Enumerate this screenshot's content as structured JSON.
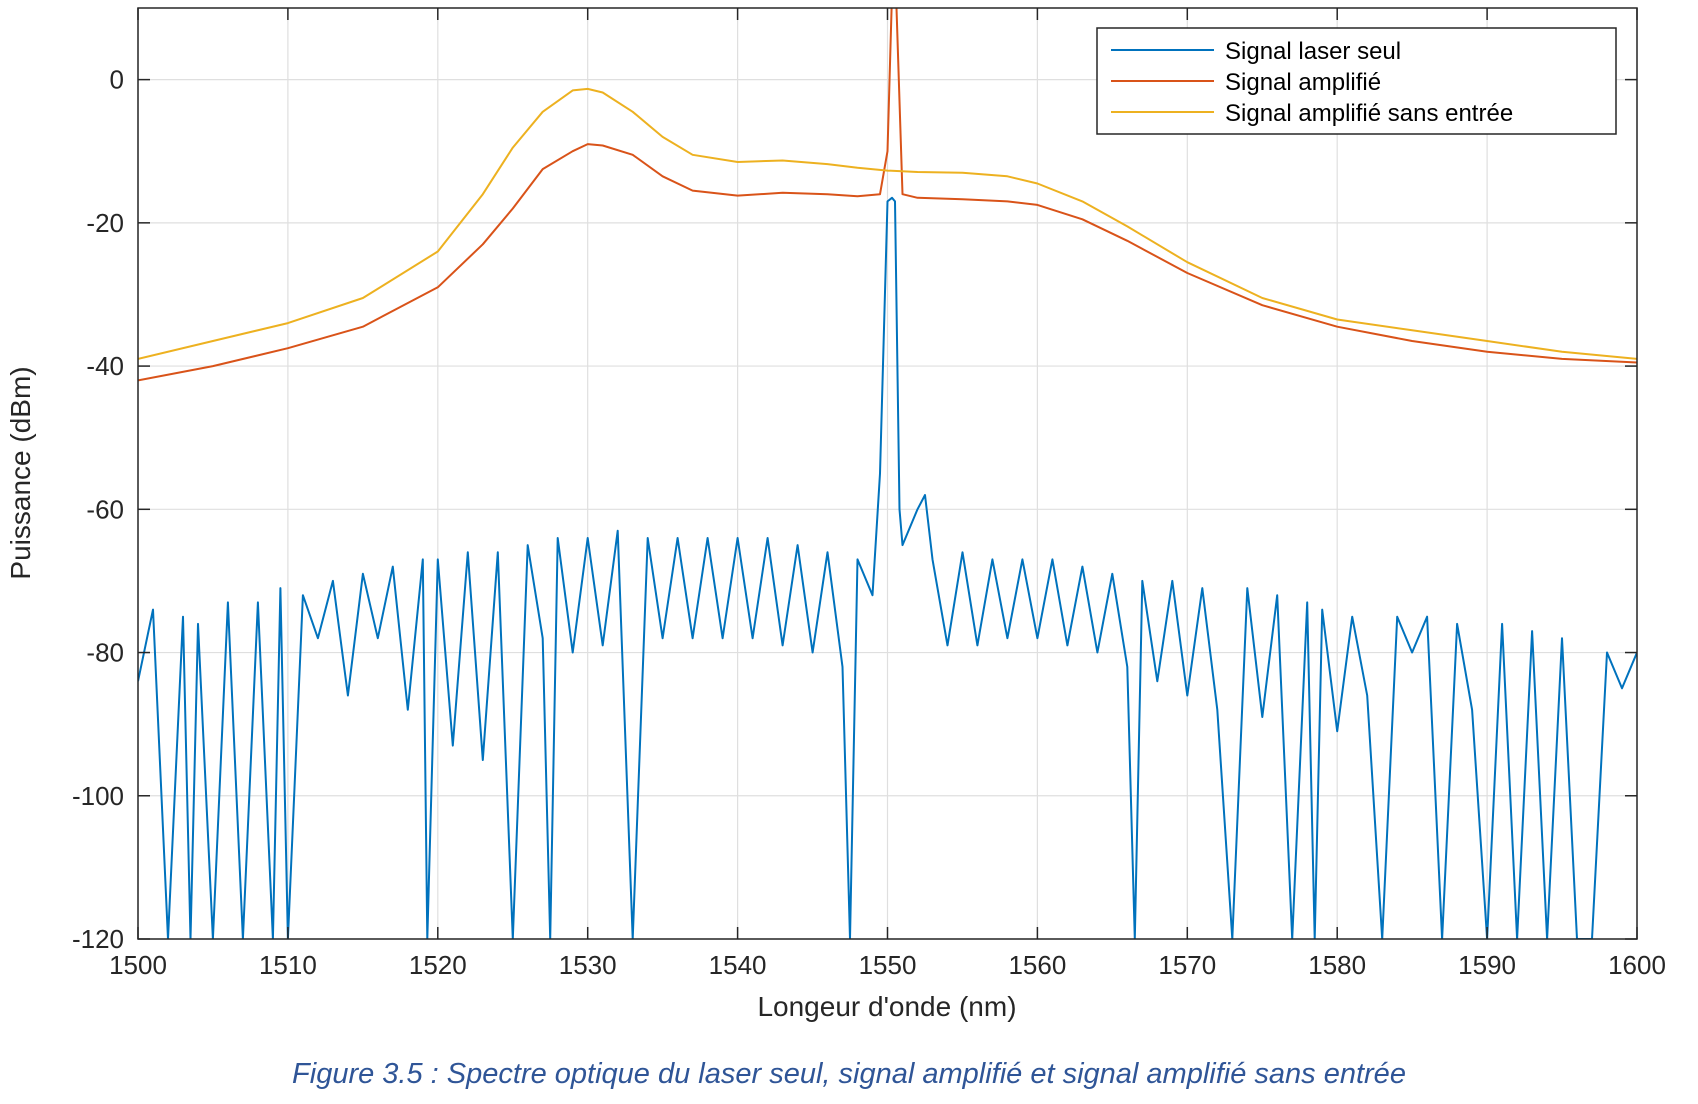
{
  "caption": "Figure 3.5 : Spectre optique du laser seul, signal amplifié et signal amplifié sans entrée",
  "chart_data": {
    "type": "line",
    "xlabel": "Longeur d'onde (nm)",
    "ylabel": "Puissance (dBm)",
    "xlim": [
      1500,
      1600
    ],
    "ylim": [
      -120,
      10
    ],
    "xticks": [
      1500,
      1510,
      1520,
      1530,
      1540,
      1550,
      1560,
      1570,
      1580,
      1590,
      1600
    ],
    "yticks": [
      -120,
      -100,
      -80,
      -60,
      -40,
      -20,
      0
    ],
    "grid": true,
    "legend_position": "top-right",
    "series": [
      {
        "name": "Signal laser seul",
        "color": "#0072bd",
        "x": [
          1500,
          1501,
          1502,
          1503,
          1503.5,
          1504,
          1505,
          1506,
          1507,
          1508,
          1509,
          1509.5,
          1510,
          1511,
          1512,
          1513,
          1514,
          1515,
          1516,
          1517,
          1518,
          1519,
          1519.3,
          1520,
          1521,
          1522,
          1523,
          1524,
          1525,
          1526,
          1527,
          1527.5,
          1528,
          1529,
          1530,
          1531,
          1532,
          1533,
          1534,
          1535,
          1536,
          1537,
          1538,
          1539,
          1540,
          1541,
          1542,
          1543,
          1544,
          1545,
          1546,
          1547,
          1547.5,
          1548,
          1549,
          1549.5,
          1550,
          1550.3,
          1550.5,
          1550.8,
          1551,
          1552,
          1552.5,
          1553,
          1554,
          1555,
          1556,
          1557,
          1558,
          1559,
          1560,
          1561,
          1562,
          1563,
          1564,
          1565,
          1566,
          1566.5,
          1567,
          1568,
          1569,
          1570,
          1571,
          1572,
          1573,
          1574,
          1575,
          1576,
          1577,
          1578,
          1578.5,
          1579,
          1580,
          1581,
          1582,
          1583,
          1584,
          1585,
          1586,
          1587,
          1588,
          1589,
          1590,
          1591,
          1592,
          1593,
          1594,
          1595,
          1596,
          1597,
          1598,
          1599,
          1600
        ],
        "y": [
          -84,
          -74,
          -120,
          -75,
          -120,
          -76,
          -120,
          -73,
          -120,
          -73,
          -120,
          -71,
          -120,
          -72,
          -78,
          -70,
          -86,
          -69,
          -78,
          -68,
          -88,
          -67,
          -120,
          -67,
          -93,
          -66,
          -95,
          -66,
          -120,
          -65,
          -78,
          -120,
          -64,
          -80,
          -64,
          -79,
          -63,
          -120,
          -64,
          -78,
          -64,
          -78,
          -64,
          -78,
          -64,
          -78,
          -64,
          -79,
          -65,
          -80,
          -66,
          -82,
          -120,
          -67,
          -72,
          -55,
          -17,
          -16.5,
          -17,
          -60,
          -65,
          -60,
          -58,
          -67,
          -79,
          -66,
          -79,
          -67,
          -78,
          -67,
          -78,
          -67,
          -79,
          -68,
          -80,
          -69,
          -82,
          -120,
          -70,
          -84,
          -70,
          -86,
          -71,
          -88,
          -120,
          -71,
          -89,
          -72,
          -120,
          -73,
          -120,
          -74,
          -91,
          -75,
          -86,
          -120,
          -75,
          -80,
          -75,
          -120,
          -76,
          -88,
          -120,
          -76,
          -120,
          -77,
          -120,
          -78,
          -120,
          -120,
          -80,
          -85,
          -80
        ]
      },
      {
        "name": "Signal amplifié",
        "color": "#d95319",
        "x": [
          1500,
          1505,
          1510,
          1515,
          1520,
          1523,
          1525,
          1527,
          1529,
          1530,
          1531,
          1533,
          1535,
          1537,
          1540,
          1543,
          1546,
          1548,
          1549.5,
          1550,
          1550.3,
          1550.6,
          1551,
          1552,
          1555,
          1558,
          1560,
          1563,
          1566,
          1570,
          1575,
          1580,
          1585,
          1590,
          1595,
          1600
        ],
        "y": [
          -42,
          -40,
          -37.5,
          -34.5,
          -29,
          -23,
          -18,
          -12.5,
          -10,
          -9,
          -9.2,
          -10.5,
          -13.5,
          -15.5,
          -16.2,
          -15.8,
          -16,
          -16.3,
          -16,
          -10,
          12,
          10,
          -16,
          -16.5,
          -16.7,
          -17,
          -17.5,
          -19.5,
          -22.5,
          -27,
          -31.5,
          -34.5,
          -36.5,
          -38,
          -39,
          -39.5
        ]
      },
      {
        "name": "Signal amplifié sans entrée",
        "color": "#edb120",
        "x": [
          1500,
          1505,
          1510,
          1515,
          1520,
          1523,
          1525,
          1527,
          1529,
          1530,
          1531,
          1533,
          1535,
          1537,
          1540,
          1543,
          1546,
          1548,
          1550,
          1552,
          1555,
          1558,
          1560,
          1563,
          1566,
          1570,
          1575,
          1580,
          1585,
          1590,
          1595,
          1600
        ],
        "y": [
          -39,
          -36.5,
          -34,
          -30.5,
          -24,
          -16,
          -9.5,
          -4.5,
          -1.5,
          -1.3,
          -1.8,
          -4.5,
          -8,
          -10.5,
          -11.5,
          -11.3,
          -11.8,
          -12.3,
          -12.7,
          -12.9,
          -13,
          -13.5,
          -14.5,
          -17,
          -20.5,
          -25.5,
          -30.5,
          -33.5,
          -35,
          -36.5,
          -38,
          -39
        ]
      }
    ]
  }
}
